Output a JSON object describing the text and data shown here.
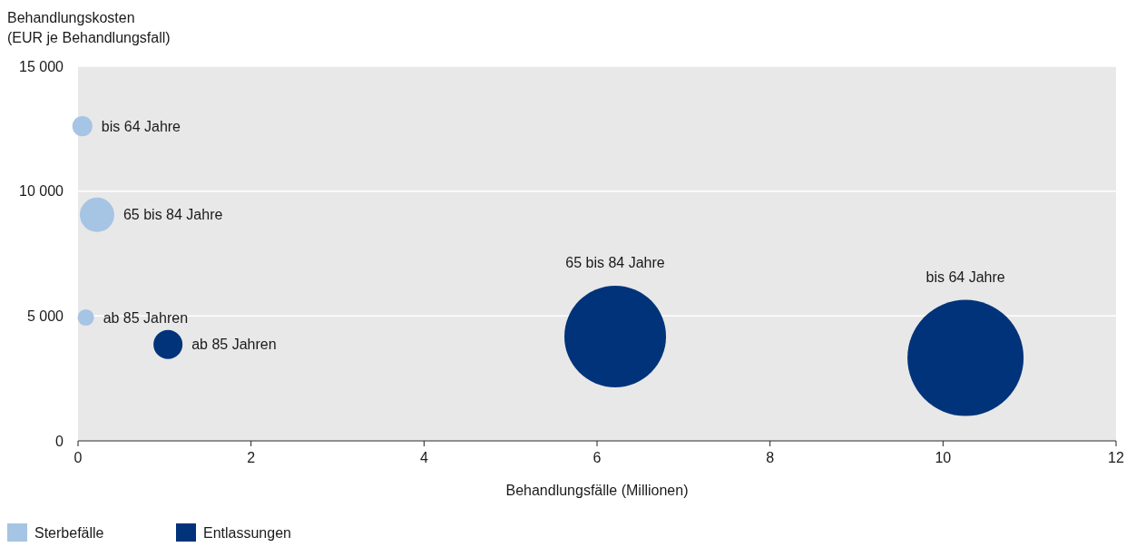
{
  "chart_data": {
    "type": "bubble",
    "xlabel": "Behandlungsfälle (Millionen)",
    "ylabel": "Behandlungskosten\n(EUR je Behandlungsfall)",
    "xlim": [
      0,
      12
    ],
    "xticks": [
      0,
      2,
      4,
      6,
      8,
      10,
      12
    ],
    "ylim": [
      0,
      15000
    ],
    "yticks": [
      0,
      {
        "value": 5000,
        "label": "5 000"
      },
      {
        "value": 10000,
        "label": "10 000"
      },
      {
        "value": 15000,
        "label": "15 000"
      }
    ],
    "grid": "y",
    "legend": "bottom",
    "series": [
      {
        "name": "Sterbefälle",
        "color": "#a6c4e4",
        "x": [
          0.05,
          0.22,
          0.09
        ],
        "values": [
          12600,
          9050,
          4940
        ],
        "sizes": [
          0.03,
          0.088,
          0.02
        ]
      },
      {
        "name": "Entlassungen",
        "color": "#00337a",
        "x": [
          1.04,
          6.21,
          10.26
        ],
        "values": [
          3860,
          4180,
          3320
        ],
        "sizes": [
          0.0625,
          0.766,
          1
        ]
      }
    ],
    "annotations": [
      "bis 64 Jahre",
      "65 bis 84 Jahre",
      "ab 85 Jahren",
      "ab 85 Jahren",
      "65 bis 84 Jahre",
      "bis 64 Jahre"
    ]
  }
}
